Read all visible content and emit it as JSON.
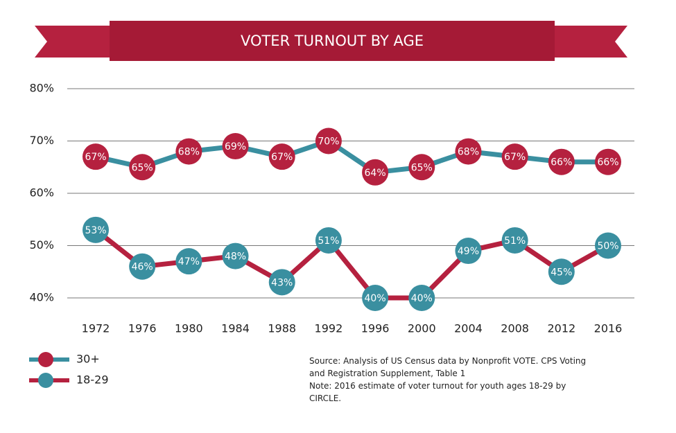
{
  "chart_data": {
    "type": "line",
    "title": "VOTER TURNOUT BY AGE",
    "categories": [
      "1972",
      "1976",
      "1980",
      "1984",
      "1988",
      "1992",
      "1996",
      "2000",
      "2004",
      "2008",
      "2012",
      "2016"
    ],
    "series": [
      {
        "name": "30+",
        "color": "#b5213f",
        "line_color": "#3a8fa0",
        "values": [
          67,
          65,
          68,
          69,
          67,
          70,
          64,
          65,
          68,
          67,
          66,
          66
        ],
        "value_labels": [
          "67%",
          "65%",
          "68%",
          "69%",
          "67%",
          "70%",
          "64%",
          "65%",
          "68%",
          "67%",
          "66%",
          "66%"
        ]
      },
      {
        "name": "18-29",
        "color": "#3a8fa0",
        "line_color": "#b5213f",
        "values": [
          53,
          46,
          47,
          48,
          43,
          51,
          40,
          40,
          49,
          51,
          45,
          50
        ],
        "value_labels": [
          "53%",
          "46%",
          "47%",
          "48%",
          "43%",
          "51%",
          "40%",
          "40%",
          "49%",
          "51%",
          "45%",
          "50%"
        ]
      }
    ],
    "ylim": [
      40,
      80
    ],
    "yticks": [
      {
        "value": 40,
        "label": "40%"
      },
      {
        "value": 50,
        "label": "50%"
      },
      {
        "value": 60,
        "label": "60%"
      },
      {
        "value": 70,
        "label": "70%"
      },
      {
        "value": 80,
        "label": "80%"
      }
    ],
    "grid": true,
    "source": "Source: Analysis of US Census data by Nonprofit VOTE. CPS Voting and Registration Supplement, Table 1",
    "note": "Note: 2016 estimate of voter turnout for youth ages 18-29 by CIRCLE."
  }
}
